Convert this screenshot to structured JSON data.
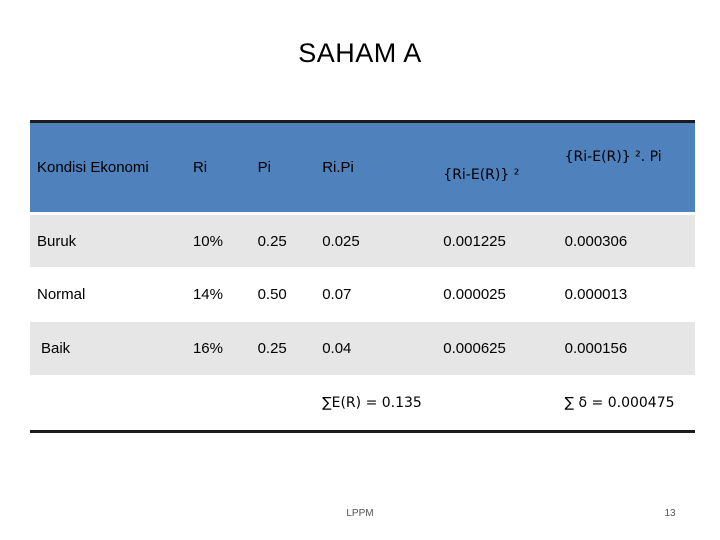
{
  "slide": {
    "title": "SAHAM A",
    "footer": "LPPM",
    "page_number": "13"
  },
  "table": {
    "headers": [
      "Kondisi Ekonomi",
      "Ri",
      "Pi",
      "Ri.Pi",
      "{Ri-E(R)} ²",
      "{Ri-E(R)} ². Pi"
    ],
    "rows": [
      [
        "Buruk",
        "10%",
        "0.25",
        "0.025",
        "0.001225",
        "0.000306"
      ],
      [
        "Normal",
        "14%",
        "0.50",
        "0.07",
        "0.000025",
        "0.000013"
      ],
      [
        "Baik",
        "16%",
        "0.25",
        "0.04",
        "0.000625",
        "0.000156"
      ]
    ],
    "sum_expected_return": "∑E(R) = 0.135",
    "sum_variance": "∑ δ = 0.000475"
  },
  "colors": {
    "header_fill": "#4f81bd",
    "band_fill": "#e6e6e6"
  }
}
